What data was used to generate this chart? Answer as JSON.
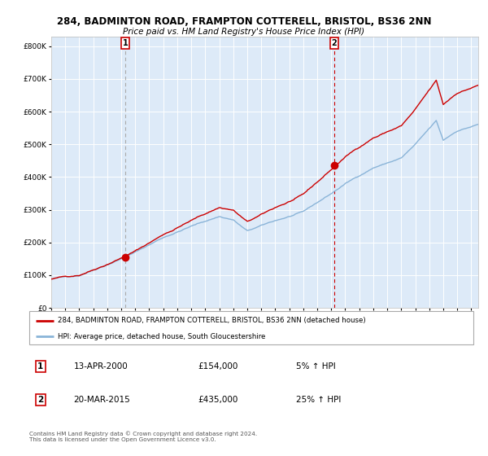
{
  "title1": "284, BADMINTON ROAD, FRAMPTON COTTERELL, BRISTOL, BS36 2NN",
  "title2": "Price paid vs. HM Land Registry's House Price Index (HPI)",
  "legend1": "284, BADMINTON ROAD, FRAMPTON COTTERELL, BRISTOL, BS36 2NN (detached house)",
  "legend2": "HPI: Average price, detached house, South Gloucestershire",
  "sale1_label": "1",
  "sale1_date": "13-APR-2000",
  "sale1_price": 154000,
  "sale1_note": "5% ↑ HPI",
  "sale1_year": 2000.28,
  "sale2_label": "2",
  "sale2_date": "20-MAR-2015",
  "sale2_price": 435000,
  "sale2_note": "25% ↑ HPI",
  "sale2_year": 2015.21,
  "bg_color": "#ddeaf8",
  "red_color": "#cc0000",
  "blue_color": "#8ab4d8",
  "footer": "Contains HM Land Registry data © Crown copyright and database right 2024.\nThis data is licensed under the Open Government Licence v3.0.",
  "ylim": [
    0,
    830000
  ],
  "xlim_start": 1995.0,
  "xlim_end": 2025.5
}
